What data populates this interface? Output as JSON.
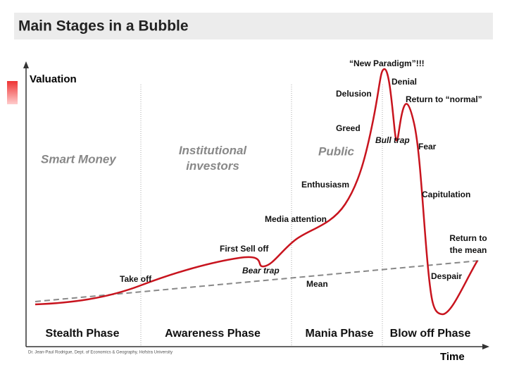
{
  "header": {
    "title": "Main Stages in a Bubble"
  },
  "axes": {
    "y_label": "Valuation",
    "x_label": "Time"
  },
  "regions": [
    "Smart Money",
    "Institutional investors",
    "Public"
  ],
  "phases": [
    "Stealth Phase",
    "Awareness Phase",
    "Mania Phase",
    "Blow off Phase"
  ],
  "annotations": {
    "take_off": "Take off",
    "first_sell_off": "First Sell off",
    "bear_trap": "Bear trap",
    "media_attention": "Media attention",
    "enthusiasm": "Enthusiasm",
    "greed": "Greed",
    "delusion": "Delusion",
    "new_paradigm": "“New Paradigm”!!!",
    "denial": "Denial",
    "bull_trap": "Bull trap",
    "return_to_normal": "Return to “normal”",
    "fear": "Fear",
    "capitulation": "Capitulation",
    "return_to_mean": "Return to the mean",
    "despair": "Despair",
    "mean": "Mean"
  },
  "credit": "Dr. Jean-Paul Rodrigue, Dept. of Economics & Geography, Hofstra University"
}
